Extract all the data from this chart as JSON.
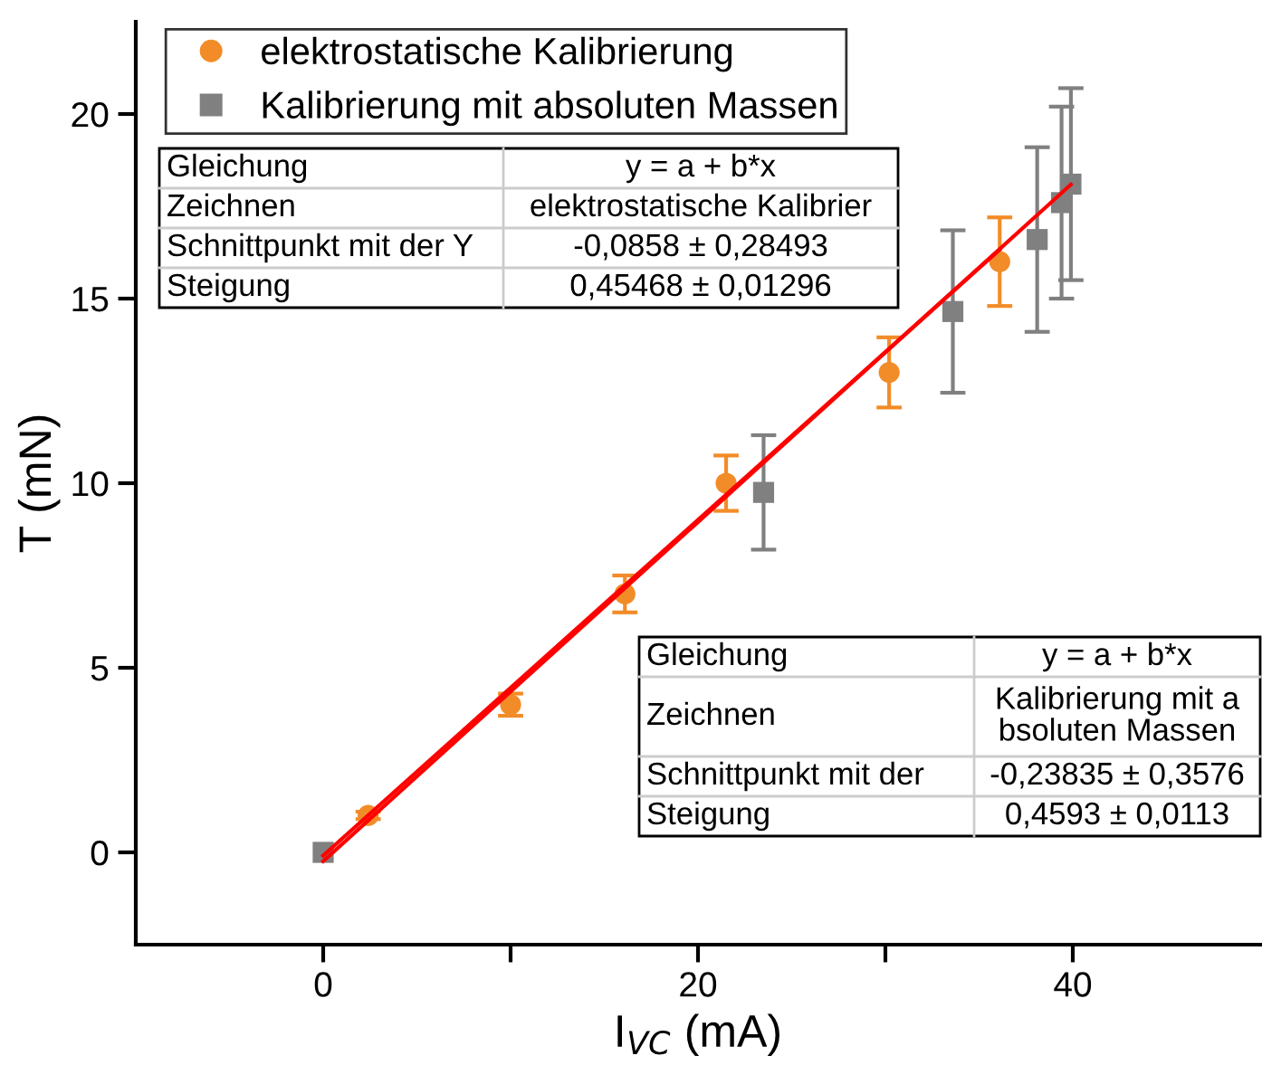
{
  "chart_data": {
    "type": "scatter",
    "xlabel": "I$_{VC}$ (mA)",
    "ylabel": "T (mN)",
    "xlim": [
      -10,
      50
    ],
    "ylim": [
      -2.5,
      22.5
    ],
    "xticks": [
      0,
      {
        "value": 10,
        "label": null
      },
      20,
      {
        "value": 30,
        "label": null
      },
      40
    ],
    "yticks": [
      0,
      5,
      10,
      15,
      20
    ],
    "grid": false,
    "legend": "top left",
    "series": [
      {
        "name": "elektrostatische Kalibrierung",
        "color": "#f28c28",
        "marker": "circle",
        "x": [
          2.4,
          10.0,
          16.1,
          21.5,
          30.2,
          36.1
        ],
        "values": [
          1.0,
          4.0,
          7.0,
          10.0,
          13.0,
          16.0
        ],
        "errors": [
          0.1,
          0.3,
          0.5,
          0.75,
          0.95,
          1.2
        ]
      },
      {
        "name": "Kalibrierung mit absoluten Massen",
        "color": "#808080",
        "marker": "square",
        "x": [
          0,
          23.5,
          33.6,
          38.1,
          39.4,
          39.9
        ],
        "values": [
          0,
          9.75,
          14.65,
          16.6,
          17.6,
          18.1
        ],
        "errors": [
          null,
          1.55,
          2.2,
          2.5,
          2.6,
          2.6
        ]
      },
      {
        "type": "line",
        "color": "#ff0000",
        "x": [
          0,
          36.1
        ],
        "values": [
          -0.09,
          16.33
        ]
      },
      {
        "type": "line",
        "color": "#ff0000",
        "x": [
          0,
          39.9
        ],
        "values": [
          -0.24,
          18.09
        ]
      }
    ],
    "annotations": [
      "Gleichung",
      "y = a + b*x",
      "Zeichnen",
      "elektrostatische Kalibrier",
      "Schnittpunkt mit der Y",
      "-0,0858 ± 0,28493",
      "Steigung",
      "0,45468 ± 0,01296",
      "Gleichung",
      "y = a + b*x",
      "Zeichnen",
      "Kalibrierung mit a\nbsoluten Massen",
      "Schnittpunkt mit der",
      "-0,23835 ± 0,3576",
      "Steigung",
      "0,4593 ± 0,0113"
    ]
  }
}
